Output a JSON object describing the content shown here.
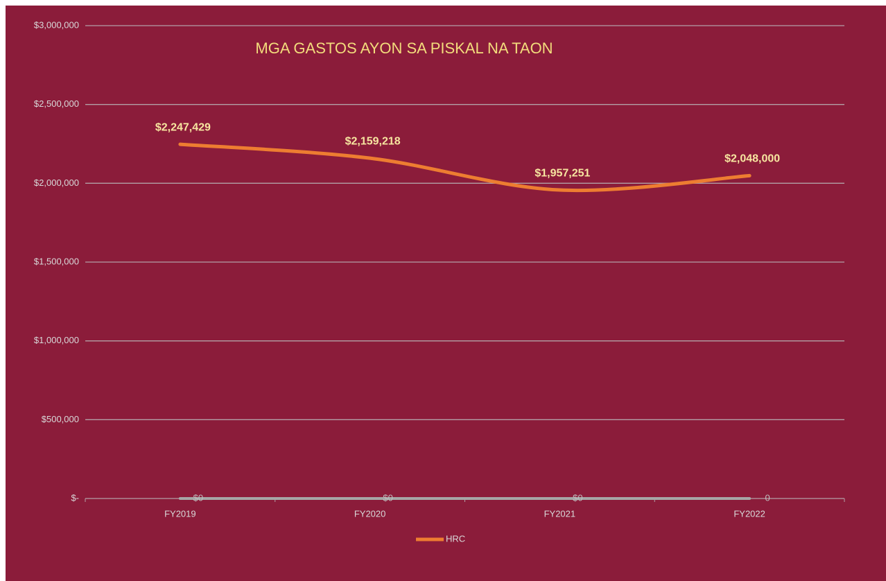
{
  "chart_data": {
    "type": "line",
    "title": "MGA GASTOS AYON SA PISKAL NA TAON",
    "categories": [
      "FY2019",
      "FY2020",
      "FY2021",
      "FY2022"
    ],
    "series": [
      {
        "name": "HRC",
        "color": "#ed7d31",
        "values": [
          2247429,
          2159218,
          1957251,
          2048000
        ],
        "value_labels": [
          "$2,247,429",
          "$2,159,218",
          "$1,957,251",
          "$2,048,000"
        ]
      },
      {
        "color": "#a6a6a6",
        "values": [
          0,
          0,
          0,
          0
        ],
        "value_labels": [
          "$0",
          "$0",
          "$0",
          "0"
        ]
      }
    ],
    "ylim": [
      0,
      3000000
    ],
    "yticks": [
      {
        "value": 0,
        "label": "$-"
      },
      {
        "value": 500000,
        "label": "$500,000"
      },
      {
        "value": 1000000,
        "label": "$1,000,000"
      },
      {
        "value": 1500000,
        "label": "$1,500,000"
      },
      {
        "value": 2000000,
        "label": "$2,000,000"
      },
      {
        "value": 2500000,
        "label": "$2,500,000"
      },
      {
        "value": 3000000,
        "label": "$3,000,000"
      }
    ],
    "grid": true,
    "smooth": true,
    "legend": "bottom"
  }
}
